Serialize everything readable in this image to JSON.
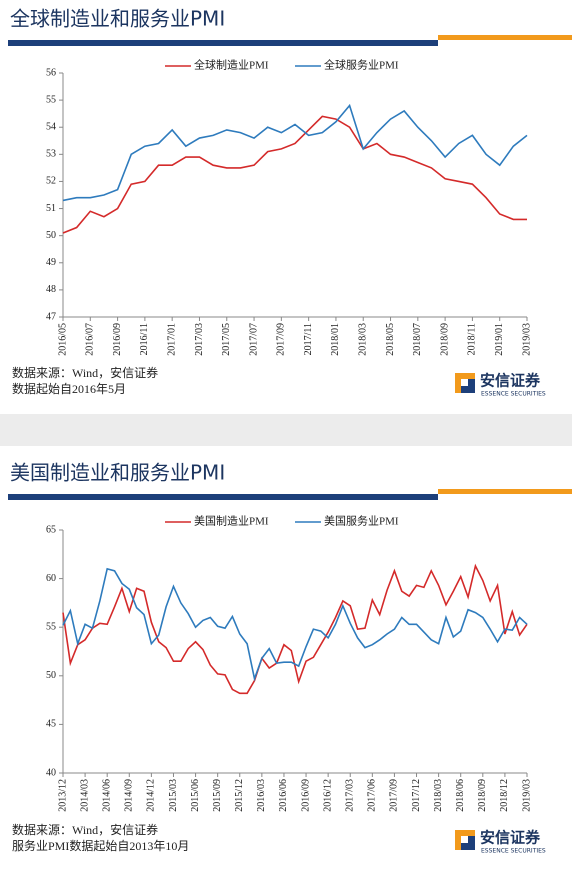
{
  "chart_data": [
    {
      "type": "line",
      "title": "全球制造业和服务业PMI",
      "categories": [
        "2016/05",
        null,
        "2016/07",
        null,
        "2016/09",
        null,
        "2016/11",
        null,
        "2017/01",
        null,
        "2017/03",
        null,
        "2017/05",
        null,
        "2017/07",
        null,
        "2017/09",
        null,
        "2017/11",
        null,
        "2018/01",
        null,
        "2018/03",
        null,
        "2018/05",
        null,
        "2018/07",
        null,
        "2018/09",
        null,
        "2018/11",
        null,
        "2019/01",
        null,
        "2019/03"
      ],
      "series": [
        {
          "name": "全球制造业PMI",
          "color": "#d42a2a",
          "values": [
            50.1,
            50.3,
            50.9,
            50.7,
            51.0,
            51.9,
            52.0,
            52.6,
            52.6,
            52.9,
            52.9,
            52.6,
            52.5,
            52.5,
            52.6,
            53.1,
            53.2,
            53.4,
            53.9,
            54.4,
            54.3,
            54.0,
            53.2,
            53.4,
            53.0,
            52.9,
            52.7,
            52.5,
            52.1,
            52.0,
            51.9,
            51.4,
            50.8,
            50.6,
            50.6
          ]
        },
        {
          "name": "全球服务业PMI",
          "color": "#2e7bbd",
          "values": [
            51.3,
            51.4,
            51.4,
            51.5,
            51.7,
            53.0,
            53.3,
            53.4,
            53.9,
            53.3,
            53.6,
            53.7,
            53.9,
            53.8,
            53.6,
            54.0,
            53.8,
            54.1,
            53.7,
            53.8,
            54.2,
            54.8,
            53.2,
            53.8,
            54.3,
            54.6,
            54.0,
            53.5,
            52.9,
            53.4,
            53.7,
            53.0,
            52.6,
            53.3,
            53.7
          ]
        }
      ],
      "ylim": [
        47,
        56
      ],
      "yticks": [
        47,
        48,
        49,
        50,
        51,
        52,
        53,
        54,
        55,
        56
      ],
      "notes": [
        "数据来源：Wind，安信证券",
        "数据起始自2016年5月"
      ],
      "brand": "安信证券",
      "brand_en": "ESSENCE SECURITIES"
    },
    {
      "type": "line",
      "title": "美国制造业和服务业PMI",
      "categories": [
        "2013/12",
        null,
        null,
        "2014/03",
        null,
        null,
        "2014/06",
        null,
        null,
        "2014/09",
        null,
        null,
        "2014/12",
        null,
        null,
        "2015/03",
        null,
        null,
        "2015/06",
        null,
        null,
        "2015/09",
        null,
        null,
        "2015/12",
        null,
        null,
        "2016/03",
        null,
        null,
        "2016/06",
        null,
        null,
        "2016/09",
        null,
        null,
        "2016/12",
        null,
        null,
        "2017/03",
        null,
        null,
        "2017/06",
        null,
        null,
        "2017/09",
        null,
        null,
        "2017/12",
        null,
        null,
        "2018/03",
        null,
        null,
        "2018/06",
        null,
        null,
        "2018/09",
        null,
        null,
        "2018/12",
        null,
        null,
        "2019/03"
      ],
      "series": [
        {
          "name": "美国制造业PMI",
          "color": "#d42a2a",
          "values": [
            56.5,
            51.3,
            53.2,
            53.7,
            54.9,
            55.4,
            55.3,
            57.1,
            59.0,
            56.6,
            59.0,
            58.7,
            55.5,
            53.5,
            52.9,
            51.5,
            51.5,
            52.8,
            53.5,
            52.7,
            51.1,
            50.2,
            50.1,
            48.6,
            48.2,
            48.2,
            49.5,
            51.8,
            50.8,
            51.3,
            53.2,
            52.6,
            49.4,
            51.5,
            51.9,
            53.2,
            54.5,
            56.0,
            57.7,
            57.2,
            54.8,
            54.9,
            57.8,
            56.3,
            58.8,
            60.8,
            58.7,
            58.2,
            59.3,
            59.1,
            60.8,
            59.3,
            57.3,
            58.7,
            60.2,
            58.1,
            61.3,
            59.8,
            57.7,
            59.3,
            54.3,
            56.6,
            54.2,
            55.3
          ]
        },
        {
          "name": "美国服务业PMI",
          "color": "#2e7bbd",
          "values": [
            55.2,
            56.7,
            53.3,
            55.3,
            54.9,
            57.7,
            61.0,
            60.8,
            59.5,
            58.9,
            57.0,
            56.3,
            53.3,
            54.2,
            57.1,
            59.2,
            57.5,
            56.4,
            55.0,
            55.7,
            56.0,
            55.1,
            54.9,
            56.1,
            54.3,
            53.3,
            49.7,
            51.8,
            52.8,
            51.3,
            51.4,
            51.4,
            51.0,
            53.0,
            54.8,
            54.6,
            53.9,
            55.3,
            57.2,
            55.4,
            53.9,
            52.9,
            53.2,
            53.7,
            54.3,
            54.8,
            56.0,
            55.3,
            55.3,
            54.5,
            53.7,
            53.3,
            56.0,
            54.0,
            54.6,
            56.8,
            56.5,
            56.0,
            54.8,
            53.5,
            54.8,
            54.7,
            56.0,
            55.3
          ]
        }
      ],
      "ylim": [
        40,
        65
      ],
      "yticks": [
        40,
        45,
        50,
        55,
        60,
        65
      ],
      "notes": [
        "数据来源：Wind，安信证券",
        "服务业PMI数据起始自2013年10月"
      ],
      "brand": "安信证券",
      "brand_en": "ESSENCE SECURITIES"
    }
  ]
}
